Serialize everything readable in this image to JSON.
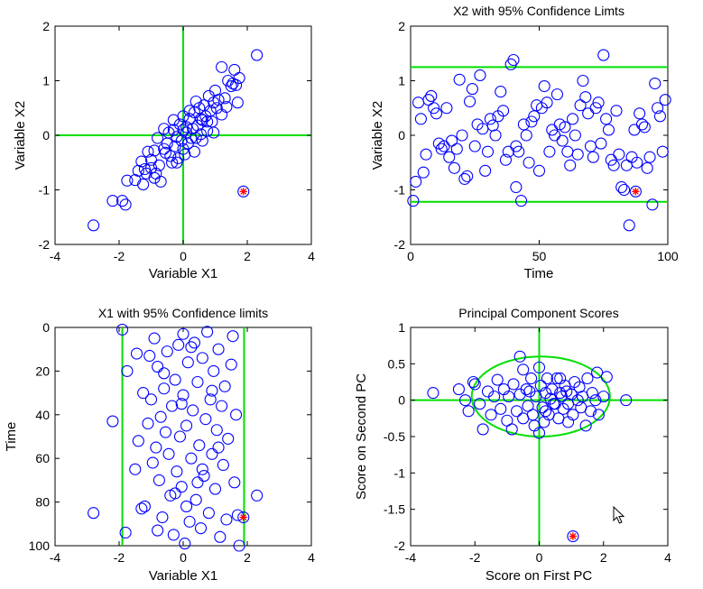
{
  "chart_data": [
    {
      "type": "scatter",
      "id": "x1x2",
      "title": "",
      "xlabel": "Variable X1",
      "ylabel": "Variable X2",
      "xlim": [
        -4,
        4
      ],
      "ylim": [
        -2,
        2
      ],
      "x_reverse": false,
      "y_reverse": false,
      "xticks": [
        -4,
        -2,
        0,
        2,
        4
      ],
      "yticks": [
        -2,
        -1,
        0,
        1,
        2
      ],
      "hlines": [
        0
      ],
      "vlines": [
        0
      ],
      "points": [
        [
          -2.8,
          -1.65
        ],
        [
          -2.2,
          -1.2
        ],
        [
          -1.9,
          -1.2
        ],
        [
          -1.8,
          -1.27
        ],
        [
          -1.75,
          -0.83
        ],
        [
          -1.5,
          -0.82
        ],
        [
          -1.4,
          -0.65
        ],
        [
          -1.3,
          -0.48
        ],
        [
          -1.25,
          -0.9
        ],
        [
          -1.2,
          -0.62
        ],
        [
          -1.15,
          -0.7
        ],
        [
          -1.0,
          -0.6
        ],
        [
          -1.0,
          -0.45
        ],
        [
          -0.9,
          -0.78
        ],
        [
          -0.9,
          -0.28
        ],
        [
          -0.8,
          -0.05
        ],
        [
          -0.75,
          -0.55
        ],
        [
          -0.7,
          -0.85
        ],
        [
          -0.6,
          0.12
        ],
        [
          -0.55,
          -0.32
        ],
        [
          -0.5,
          -0.15
        ],
        [
          -0.45,
          0.05
        ],
        [
          -0.4,
          -0.38
        ],
        [
          -0.35,
          -0.5
        ],
        [
          -0.3,
          0.28
        ],
        [
          -0.25,
          -0.2
        ],
        [
          -0.2,
          -0.03
        ],
        [
          -0.15,
          -0.42
        ],
        [
          -0.1,
          0.2
        ],
        [
          -0.05,
          -0.1
        ],
        [
          0.0,
          0.35
        ],
        [
          0.0,
          -0.25
        ],
        [
          0.05,
          -0.35
        ],
        [
          0.1,
          0.05
        ],
        [
          0.15,
          -0.15
        ],
        [
          0.2,
          0.3
        ],
        [
          0.25,
          -0.05
        ],
        [
          0.3,
          0.12
        ],
        [
          0.35,
          0.42
        ],
        [
          0.35,
          -0.3
        ],
        [
          0.4,
          0.62
        ],
        [
          0.45,
          0.18
        ],
        [
          0.5,
          0.5
        ],
        [
          0.55,
          0.02
        ],
        [
          0.6,
          0.28
        ],
        [
          0.65,
          0.55
        ],
        [
          0.7,
          0.35
        ],
        [
          0.75,
          0.08
        ],
        [
          0.8,
          0.72
        ],
        [
          0.85,
          0.45
        ],
        [
          0.9,
          0.25
        ],
        [
          0.95,
          0.6
        ],
        [
          1.0,
          0.82
        ],
        [
          1.05,
          0.5
        ],
        [
          1.1,
          0.65
        ],
        [
          1.2,
          0.38
        ],
        [
          1.3,
          0.68
        ],
        [
          1.4,
          1.0
        ],
        [
          1.5,
          0.9
        ],
        [
          1.55,
          0.95
        ],
        [
          1.6,
          1.2
        ],
        [
          1.65,
          0.92
        ],
        [
          1.7,
          0.6
        ],
        [
          1.75,
          1.05
        ],
        [
          2.3,
          1.47
        ],
        [
          1.2,
          1.25
        ],
        [
          0.1,
          0.15
        ],
        [
          -0.3,
          0.1
        ],
        [
          0.55,
          0.3
        ],
        [
          0.75,
          0.25
        ],
        [
          -0.6,
          -0.25
        ],
        [
          -0.2,
          -0.5
        ],
        [
          0.95,
          0.05
        ],
        [
          0.4,
          -0.05
        ],
        [
          -1.1,
          -0.3
        ],
        [
          0.2,
          0.45
        ],
        [
          0.6,
          -0.1
        ],
        [
          -0.85,
          -0.7
        ],
        [
          1.35,
          0.52
        ],
        [
          0.0,
          0.1
        ]
      ],
      "outlier": [
        1.88,
        -1.03
      ]
    },
    {
      "type": "scatter",
      "id": "x2time",
      "title": "X2 with 95% Confidence Limts",
      "xlabel": "Time",
      "ylabel": "Variable X2",
      "xlim": [
        0,
        100
      ],
      "ylim": [
        -2,
        2
      ],
      "x_reverse": false,
      "y_reverse": false,
      "xticks": [
        0,
        50,
        100
      ],
      "yticks": [
        -2,
        -1,
        0,
        1,
        2
      ],
      "hlines": [
        1.25,
        -1.22
      ],
      "vlines": [],
      "points": [
        [
          1,
          -1.2
        ],
        [
          2,
          -0.85
        ],
        [
          3,
          0.6
        ],
        [
          4,
          0.3
        ],
        [
          5,
          -0.68
        ],
        [
          6,
          -0.35
        ],
        [
          7,
          0.65
        ],
        [
          8,
          0.72
        ],
        [
          9,
          0.5
        ],
        [
          10,
          0.4
        ],
        [
          11,
          -0.15
        ],
        [
          12,
          -0.25
        ],
        [
          13,
          -0.2
        ],
        [
          14,
          0.5
        ],
        [
          15,
          -0.4
        ],
        [
          16,
          -0.1
        ],
        [
          17,
          -0.6
        ],
        [
          18,
          -0.25
        ],
        [
          19,
          1.02
        ],
        [
          20,
          0.0
        ],
        [
          21,
          -0.8
        ],
        [
          22,
          -0.75
        ],
        [
          23,
          0.62
        ],
        [
          24,
          0.85
        ],
        [
          25,
          -0.2
        ],
        [
          26,
          0.2
        ],
        [
          27,
          1.1
        ],
        [
          28,
          0.12
        ],
        [
          29,
          -0.65
        ],
        [
          30,
          -0.3
        ],
        [
          31,
          0.3
        ],
        [
          32,
          0.18
        ],
        [
          33,
          0.0
        ],
        [
          34,
          0.35
        ],
        [
          35,
          0.8
        ],
        [
          36,
          0.45
        ],
        [
          37,
          -0.45
        ],
        [
          38,
          -0.3
        ],
        [
          39,
          1.3
        ],
        [
          40,
          1.38
        ],
        [
          41,
          -0.2
        ],
        [
          42,
          -0.3
        ],
        [
          43,
          -1.2
        ],
        [
          44,
          0.2
        ],
        [
          45,
          0.0
        ],
        [
          46,
          -0.5
        ],
        [
          47,
          0.25
        ],
        [
          48,
          0.35
        ],
        [
          49,
          0.55
        ],
        [
          50,
          -0.65
        ],
        [
          51,
          0.5
        ],
        [
          52,
          0.9
        ],
        [
          53,
          0.6
        ],
        [
          54,
          -0.3
        ],
        [
          55,
          0.1
        ],
        [
          56,
          0.0
        ],
        [
          57,
          0.75
        ],
        [
          58,
          0.2
        ],
        [
          59,
          -0.1
        ],
        [
          60,
          0.15
        ],
        [
          61,
          -0.3
        ],
        [
          62,
          -0.55
        ],
        [
          63,
          0.3
        ],
        [
          64,
          0.0
        ],
        [
          65,
          -0.35
        ],
        [
          66,
          0.55
        ],
        [
          67,
          1.0
        ],
        [
          68,
          0.7
        ],
        [
          69,
          0.4
        ],
        [
          70,
          -0.2
        ],
        [
          71,
          -0.4
        ],
        [
          72,
          0.5
        ],
        [
          73,
          0.6
        ],
        [
          74,
          -0.15
        ],
        [
          75,
          1.47
        ],
        [
          76,
          0.3
        ],
        [
          77,
          0.1
        ],
        [
          78,
          -0.45
        ],
        [
          79,
          -0.55
        ],
        [
          80,
          0.45
        ],
        [
          81,
          -0.35
        ],
        [
          82,
          -0.95
        ],
        [
          83,
          -1.0
        ],
        [
          84,
          -0.55
        ],
        [
          85,
          -1.65
        ],
        [
          86,
          -0.4
        ],
        [
          87,
          0.1
        ],
        [
          88,
          -0.5
        ],
        [
          89,
          0.4
        ],
        [
          90,
          0.2
        ],
        [
          91,
          0.15
        ],
        [
          92,
          -0.6
        ],
        [
          93,
          -0.4
        ],
        [
          94,
          -1.27
        ],
        [
          95,
          0.95
        ],
        [
          96,
          0.5
        ],
        [
          97,
          0.35
        ],
        [
          98,
          -0.3
        ],
        [
          99,
          0.65
        ],
        [
          41,
          -0.95
        ]
      ],
      "outlier": [
        87.5,
        -1.03
      ]
    },
    {
      "type": "scatter",
      "id": "x1time",
      "title": "X1 with 95% Confidence limits",
      "xlabel": "Variable X1",
      "ylabel": "Time",
      "xlim": [
        -4,
        4
      ],
      "ylim": [
        0,
        100
      ],
      "x_reverse": false,
      "y_reverse": true,
      "xticks": [
        -4,
        -2,
        0,
        2,
        4
      ],
      "yticks": [
        0,
        20,
        40,
        60,
        80,
        100
      ],
      "hlines": [],
      "vlines": [
        -1.9,
        1.9
      ],
      "points": [
        [
          -1.9,
          1
        ],
        [
          -1.8,
          94
        ],
        [
          -1.75,
          20
        ],
        [
          -1.5,
          65
        ],
        [
          -1.4,
          52
        ],
        [
          -1.3,
          83
        ],
        [
          -1.25,
          30
        ],
        [
          -1.2,
          82
        ],
        [
          -1.1,
          44
        ],
        [
          -1.05,
          13
        ],
        [
          -1.0,
          33
        ],
        [
          -0.95,
          62
        ],
        [
          -0.9,
          5
        ],
        [
          -0.85,
          55
        ],
        [
          -0.8,
          18
        ],
        [
          -0.75,
          70
        ],
        [
          -0.7,
          41
        ],
        [
          -0.65,
          87
        ],
        [
          -0.6,
          28
        ],
        [
          -0.55,
          48
        ],
        [
          -0.5,
          11
        ],
        [
          -0.45,
          58
        ],
        [
          -0.4,
          77
        ],
        [
          -0.35,
          36
        ],
        [
          -0.3,
          95
        ],
        [
          -0.25,
          24
        ],
        [
          -0.2,
          66
        ],
        [
          -0.15,
          8
        ],
        [
          -0.1,
          50
        ],
        [
          -0.05,
          73
        ],
        [
          0.0,
          3
        ],
        [
          0.0,
          31
        ],
        [
          0.05,
          99
        ],
        [
          0.1,
          45
        ],
        [
          0.15,
          16
        ],
        [
          0.2,
          89
        ],
        [
          0.25,
          60
        ],
        [
          0.3,
          38
        ],
        [
          0.35,
          7
        ],
        [
          0.4,
          79
        ],
        [
          0.45,
          25
        ],
        [
          0.5,
          54
        ],
        [
          0.55,
          92
        ],
        [
          0.6,
          14
        ],
        [
          0.65,
          68
        ],
        [
          0.7,
          42
        ],
        [
          0.75,
          2
        ],
        [
          0.8,
          85
        ],
        [
          0.85,
          33
        ],
        [
          0.9,
          58
        ],
        [
          0.95,
          20
        ],
        [
          1.0,
          74
        ],
        [
          1.05,
          47
        ],
        [
          1.1,
          10
        ],
        [
          1.15,
          96
        ],
        [
          1.2,
          36
        ],
        [
          1.25,
          63
        ],
        [
          1.3,
          27
        ],
        [
          1.35,
          88
        ],
        [
          1.4,
          51
        ],
        [
          1.5,
          17
        ],
        [
          1.55,
          4
        ],
        [
          1.6,
          71
        ],
        [
          1.65,
          40
        ],
        [
          1.7,
          86
        ],
        [
          -2.8,
          85
        ],
        [
          -2.2,
          43
        ],
        [
          2.3,
          77
        ],
        [
          1.75,
          100
        ],
        [
          -0.6,
          21
        ],
        [
          0.25,
          9
        ],
        [
          -0.25,
          76
        ],
        [
          0.6,
          65
        ],
        [
          -1.45,
          12
        ],
        [
          0.9,
          29
        ],
        [
          -0.8,
          93
        ],
        [
          0.45,
          71
        ],
        [
          -0.05,
          35
        ],
        [
          1.1,
          55
        ],
        [
          0.1,
          82
        ]
      ],
      "outlier": [
        1.88,
        87
      ]
    },
    {
      "type": "scatter",
      "id": "pcscores",
      "title": "Principal Component Scores",
      "xlabel": "Score on First PC",
      "ylabel": "Score on Second PC",
      "xlim": [
        -4,
        4
      ],
      "ylim": [
        -2,
        1
      ],
      "x_reverse": false,
      "y_reverse": false,
      "xticks": [
        -4,
        -2,
        0,
        2,
        4
      ],
      "yticks": [
        1,
        0.5,
        0,
        -0.5,
        -1,
        -1.5,
        -2
      ],
      "hlines": [
        0
      ],
      "vlines": [
        0
      ],
      "ellipse": {
        "cx": 0.05,
        "cy": 0.05,
        "rx": 2.15,
        "ry": 0.55
      },
      "points": [
        [
          -3.3,
          0.1
        ],
        [
          -2.5,
          0.15
        ],
        [
          -2.3,
          0.0
        ],
        [
          -2.2,
          -0.15
        ],
        [
          -2.05,
          0.25
        ],
        [
          -1.85,
          -0.05
        ],
        [
          -1.6,
          0.12
        ],
        [
          -1.5,
          -0.2
        ],
        [
          -1.4,
          0.05
        ],
        [
          -1.3,
          0.28
        ],
        [
          -1.2,
          -0.12
        ],
        [
          -1.1,
          0.15
        ],
        [
          -1.0,
          -0.28
        ],
        [
          -0.95,
          0.05
        ],
        [
          -0.85,
          -0.4
        ],
        [
          -0.8,
          0.22
        ],
        [
          -0.7,
          -0.15
        ],
        [
          -0.6,
          0.08
        ],
        [
          -0.5,
          0.42
        ],
        [
          -0.5,
          -0.25
        ],
        [
          -0.4,
          0.15
        ],
        [
          -0.35,
          -0.08
        ],
        [
          -0.25,
          0.3
        ],
        [
          -0.2,
          -0.2
        ],
        [
          -0.1,
          0.05
        ],
        [
          0.0,
          -0.45
        ],
        [
          0.0,
          0.45
        ],
        [
          0.05,
          0.2
        ],
        [
          0.1,
          -0.1
        ],
        [
          0.15,
          -0.3
        ],
        [
          0.2,
          0.1
        ],
        [
          0.25,
          0.3
        ],
        [
          0.3,
          -0.2
        ],
        [
          0.35,
          0.02
        ],
        [
          0.4,
          0.15
        ],
        [
          0.5,
          -0.05
        ],
        [
          0.55,
          0.3
        ],
        [
          0.6,
          -0.25
        ],
        [
          0.65,
          0.1
        ],
        [
          0.7,
          0.05
        ],
        [
          0.75,
          -0.12
        ],
        [
          0.8,
          0.2
        ],
        [
          0.85,
          0.12
        ],
        [
          0.9,
          -0.05
        ],
        [
          1.0,
          0.08
        ],
        [
          1.05,
          -0.2
        ],
        [
          1.1,
          0.25
        ],
        [
          1.2,
          0.0
        ],
        [
          1.25,
          0.18
        ],
        [
          1.3,
          -0.1
        ],
        [
          1.35,
          0.05
        ],
        [
          1.5,
          0.3
        ],
        [
          1.6,
          -0.15
        ],
        [
          1.65,
          0.1
        ],
        [
          1.75,
          0.0
        ],
        [
          1.8,
          0.38
        ],
        [
          1.85,
          -0.2
        ],
        [
          2.0,
          0.05
        ],
        [
          2.1,
          0.32
        ],
        [
          2.7,
          0.0
        ],
        [
          -0.6,
          0.6
        ],
        [
          0.45,
          -0.05
        ],
        [
          0.2,
          -0.15
        ],
        [
          -0.3,
          0.12
        ],
        [
          1.45,
          -0.35
        ],
        [
          -1.75,
          -0.4
        ],
        [
          0.65,
          0.3
        ],
        [
          -0.15,
          -0.35
        ],
        [
          0.9,
          -0.3
        ],
        [
          -2.0,
          0.22
        ]
      ],
      "outlier": [
        1.05,
        -1.87
      ]
    }
  ]
}
